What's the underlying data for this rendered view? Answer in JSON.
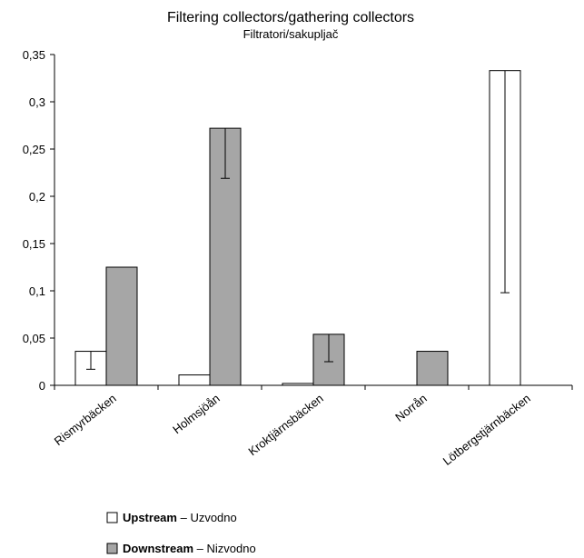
{
  "chart_data": {
    "type": "bar",
    "title": "Filtering collectors/gathering collectors",
    "subtitle": "Filtratori/sakupljač",
    "xlabel": "",
    "ylabel": "",
    "ylim": [
      0,
      0.35
    ],
    "yticks": [
      "0",
      "0,05",
      "0,1",
      "0,15",
      "0,2",
      "0,25",
      "0,3",
      "0,35"
    ],
    "ytick_values": [
      0,
      0.05,
      0.1,
      0.15,
      0.2,
      0.25,
      0.3,
      0.35
    ],
    "grid": false,
    "legend_position": "bottom-left",
    "categories": [
      "Rismyrbäcken",
      "Holmsjöån",
      "Kroktjärnsbäcken",
      "Norrån",
      "Lötbergstjärnbäcken"
    ],
    "series": [
      {
        "name": "Upstream",
        "name_alt": "Uzvodno",
        "color": "#ffffff",
        "values": [
          0.036,
          0.011,
          0.002,
          0,
          0.333
        ],
        "error_low": [
          0.017,
          0.011,
          0.002,
          0,
          0.098
        ]
      },
      {
        "name": "Downstream",
        "name_alt": "Nizvodno",
        "color": "#a6a6a6",
        "values": [
          0.125,
          0.272,
          0.054,
          0.036,
          0
        ],
        "error_low": [
          0.125,
          0.219,
          0.025,
          0.036,
          0
        ]
      }
    ]
  }
}
